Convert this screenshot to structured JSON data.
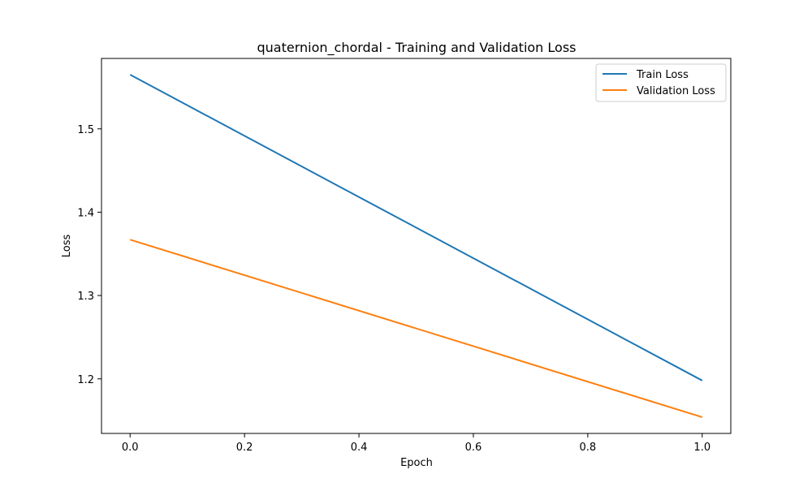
{
  "chart_data": {
    "type": "line",
    "title": "quaternion_chordal - Training and Validation Loss",
    "xlabel": "Epoch",
    "ylabel": "Loss",
    "xlim": [
      -0.05,
      1.05
    ],
    "ylim": [
      1.1345,
      1.5845
    ],
    "xticks": [
      0.0,
      0.2,
      0.4,
      0.6,
      0.8,
      1.0
    ],
    "xtick_labels": [
      "0.0",
      "0.2",
      "0.4",
      "0.6",
      "0.8",
      "1.0"
    ],
    "yticks": [
      1.2,
      1.3,
      1.4,
      1.5
    ],
    "ytick_labels": [
      "1.2",
      "1.3",
      "1.4",
      "1.5"
    ],
    "grid": false,
    "legend_position": "top-right",
    "series": [
      {
        "name": "Train Loss",
        "color": "#1f77b4",
        "x": [
          0,
          1
        ],
        "y": [
          1.565,
          1.198
        ]
      },
      {
        "name": "Validation Loss",
        "color": "#ff7f0e",
        "x": [
          0,
          1
        ],
        "y": [
          1.367,
          1.154
        ]
      }
    ]
  }
}
